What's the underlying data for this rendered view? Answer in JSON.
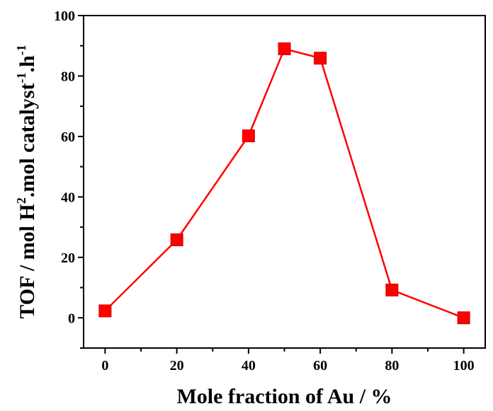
{
  "chart_data": {
    "type": "line",
    "xlabel": "Mole fraction of Au / %",
    "ylabel": {
      "part1": "TOF / mol H",
      "sup1": "2",
      "part2": ".mol catalyst",
      "sup2": "-1",
      "part3": ".h",
      "sup3": "-1"
    },
    "xlim": [
      -6,
      106
    ],
    "ylim": [
      -10,
      100
    ],
    "xticks": [
      0,
      20,
      40,
      60,
      80,
      100
    ],
    "yticks": [
      0,
      20,
      40,
      60,
      80,
      100
    ],
    "grid": false,
    "series": [
      {
        "color": "#ff0000",
        "marker": "square",
        "x": [
          0,
          20,
          40,
          50,
          60,
          80,
          100
        ],
        "y": [
          2.3,
          25.8,
          60.2,
          89.0,
          85.9,
          9.2,
          0
        ]
      }
    ]
  }
}
